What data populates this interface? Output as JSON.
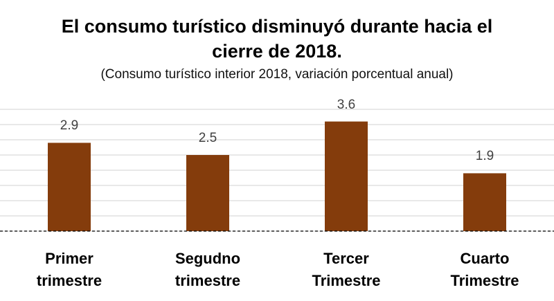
{
  "chart_data": {
    "type": "bar",
    "title": "El consumo turístico disminuyó durante hacia el cierre de 2018.",
    "subtitle": "(Consumo turístico interior 2018, variación porcentual anual)",
    "categories": [
      "Primer trimestre",
      "Segudno trimestre",
      "Tercer Trimestre",
      "Cuarto Trimestre"
    ],
    "values": [
      2.9,
      2.5,
      3.6,
      1.9
    ],
    "color": "#843c0c",
    "ylim": [
      0,
      4
    ],
    "yticks": [
      0,
      0.5,
      1,
      1.5,
      2,
      2.5,
      3,
      3.5,
      4
    ],
    "grid": true
  }
}
